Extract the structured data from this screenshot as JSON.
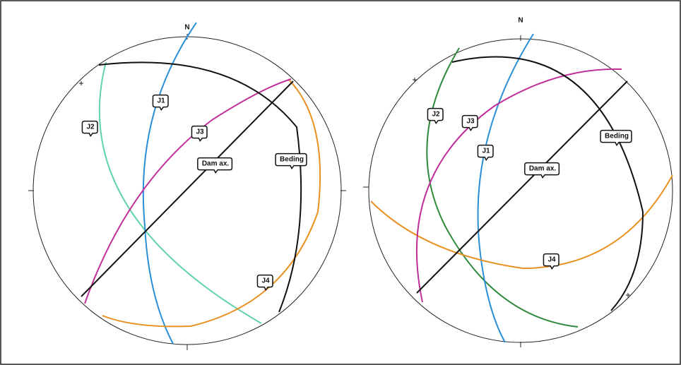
{
  "nets": [
    {
      "north": "N",
      "labels": [
        "J1",
        "J2",
        "J3",
        "Dam ax.",
        "Beding",
        "J4"
      ]
    },
    {
      "north": "N",
      "labels": [
        "J1",
        "J2",
        "J3",
        "Dam ax.",
        "Beding",
        "J4"
      ]
    }
  ]
}
